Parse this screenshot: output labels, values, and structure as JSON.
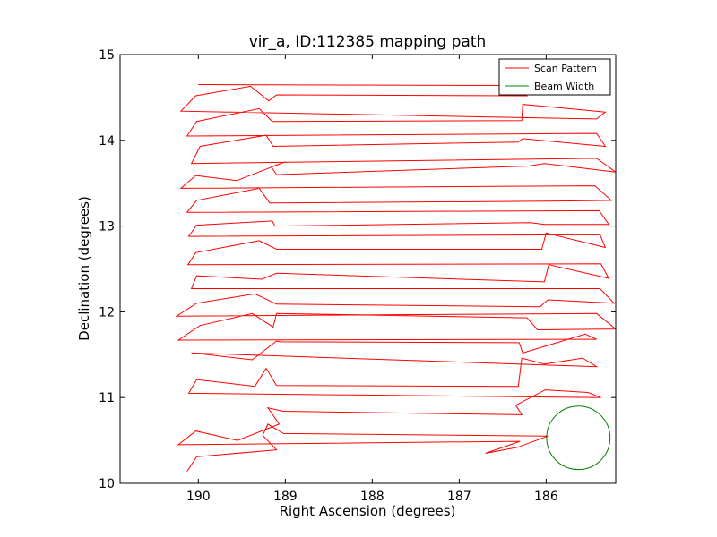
{
  "chart_data": {
    "type": "line",
    "title": "vir_a, ID:112385 mapping path",
    "xlabel": "Right Ascension (degrees)",
    "ylabel": "Declination (degrees)",
    "xlim": [
      190.9,
      185.2
    ],
    "ylim": [
      10,
      15
    ],
    "x_inverted": true,
    "xticks": [
      190,
      189,
      188,
      187,
      186
    ],
    "yticks": [
      10,
      11,
      12,
      13,
      14,
      15
    ],
    "grid": false,
    "legend_position": "top-right",
    "legend": [
      {
        "label": "Scan Pattern",
        "color": "#ff0000"
      },
      {
        "label": "Beam Width",
        "color": "#008000"
      }
    ],
    "series": [
      {
        "name": "Scan Pattern",
        "color": "#ff0000",
        "points": [
          [
            190.13,
            10.14
          ],
          [
            190.02,
            10.31
          ],
          [
            189.1,
            10.39
          ],
          [
            189.26,
            10.56
          ],
          [
            189.2,
            10.69
          ],
          [
            189.02,
            10.58
          ],
          [
            185.98,
            10.55
          ],
          [
            186.33,
            10.42
          ],
          [
            186.7,
            10.35
          ],
          [
            186.3,
            10.49
          ],
          [
            190.23,
            10.45
          ],
          [
            190.03,
            10.61
          ],
          [
            189.55,
            10.5
          ],
          [
            189.07,
            10.69
          ],
          [
            189.2,
            10.88
          ],
          [
            189.03,
            10.84
          ],
          [
            186.28,
            10.8
          ],
          [
            186.35,
            10.91
          ],
          [
            186.01,
            11.09
          ],
          [
            185.52,
            11.06
          ],
          [
            185.37,
            11.0
          ],
          [
            190.11,
            11.05
          ],
          [
            190.02,
            11.21
          ],
          [
            189.35,
            11.13
          ],
          [
            189.22,
            11.34
          ],
          [
            189.1,
            11.14
          ],
          [
            186.32,
            11.13
          ],
          [
            186.28,
            11.46
          ],
          [
            186.02,
            11.39
          ],
          [
            185.58,
            11.46
          ],
          [
            185.42,
            11.36
          ],
          [
            190.08,
            11.52
          ],
          [
            189.98,
            11.51
          ],
          [
            189.38,
            11.44
          ],
          [
            189.1,
            11.66
          ],
          [
            189.06,
            11.65
          ],
          [
            186.31,
            11.64
          ],
          [
            186.27,
            11.52
          ],
          [
            185.55,
            11.74
          ],
          [
            185.42,
            11.68
          ],
          [
            190.23,
            11.67
          ],
          [
            189.98,
            11.84
          ],
          [
            189.38,
            11.98
          ],
          [
            189.14,
            11.82
          ],
          [
            189.1,
            11.98
          ],
          [
            186.22,
            11.93
          ],
          [
            186.1,
            11.79
          ],
          [
            185.2,
            11.8
          ],
          [
            185.42,
            11.98
          ],
          [
            190.25,
            11.95
          ],
          [
            190.02,
            12.1
          ],
          [
            189.35,
            12.21
          ],
          [
            189.14,
            12.11
          ],
          [
            189.1,
            12.09
          ],
          [
            186.07,
            12.06
          ],
          [
            185.98,
            12.14
          ],
          [
            185.22,
            12.1
          ],
          [
            185.38,
            12.27
          ],
          [
            190.08,
            12.27
          ],
          [
            190.02,
            12.42
          ],
          [
            189.27,
            12.38
          ],
          [
            189.1,
            12.45
          ],
          [
            186.02,
            12.35
          ],
          [
            185.97,
            12.55
          ],
          [
            185.28,
            12.39
          ],
          [
            185.37,
            12.56
          ],
          [
            190.12,
            12.55
          ],
          [
            190.03,
            12.69
          ],
          [
            189.3,
            12.83
          ],
          [
            189.1,
            12.73
          ],
          [
            186.05,
            12.73
          ],
          [
            186.0,
            12.92
          ],
          [
            185.32,
            12.75
          ],
          [
            185.38,
            12.9
          ],
          [
            190.11,
            12.88
          ],
          [
            190.02,
            13.01
          ],
          [
            189.15,
            13.06
          ],
          [
            189.12,
            13.0
          ],
          [
            186.18,
            13.04
          ],
          [
            186.02,
            13.02
          ],
          [
            185.28,
            13.02
          ],
          [
            185.39,
            13.18
          ],
          [
            190.13,
            13.16
          ],
          [
            190.02,
            13.3
          ],
          [
            189.3,
            13.44
          ],
          [
            189.18,
            13.27
          ],
          [
            189.1,
            13.27
          ],
          [
            186.0,
            13.29
          ],
          [
            185.25,
            13.3
          ],
          [
            185.44,
            13.47
          ],
          [
            190.2,
            13.44
          ],
          [
            190.03,
            13.59
          ],
          [
            189.56,
            13.53
          ],
          [
            189.0,
            13.75
          ],
          [
            189.16,
            13.69
          ],
          [
            189.1,
            13.6
          ],
          [
            186.2,
            13.7
          ],
          [
            186.02,
            13.73
          ],
          [
            185.2,
            13.63
          ],
          [
            185.42,
            13.79
          ],
          [
            190.08,
            13.73
          ],
          [
            189.98,
            13.93
          ],
          [
            189.22,
            14.06
          ],
          [
            189.14,
            13.93
          ],
          [
            186.32,
            13.98
          ],
          [
            186.27,
            14.02
          ],
          [
            185.32,
            13.93
          ],
          [
            185.42,
            14.08
          ],
          [
            190.13,
            14.05
          ],
          [
            190.02,
            14.22
          ],
          [
            189.3,
            14.37
          ],
          [
            189.15,
            14.22
          ],
          [
            186.28,
            14.23
          ],
          [
            186.27,
            14.42
          ],
          [
            185.32,
            14.33
          ],
          [
            185.42,
            14.25
          ],
          [
            190.2,
            14.34
          ],
          [
            190.03,
            14.52
          ],
          [
            189.4,
            14.63
          ],
          [
            189.19,
            14.46
          ],
          [
            189.1,
            14.53
          ],
          [
            186.22,
            14.52
          ],
          [
            186.3,
            14.62
          ],
          [
            186.38,
            14.64
          ],
          [
            190.0,
            14.65
          ]
        ]
      },
      {
        "name": "Beam Width",
        "color": "#008000",
        "center": [
          185.63,
          10.53
        ],
        "radius_deg": 0.37
      }
    ]
  }
}
